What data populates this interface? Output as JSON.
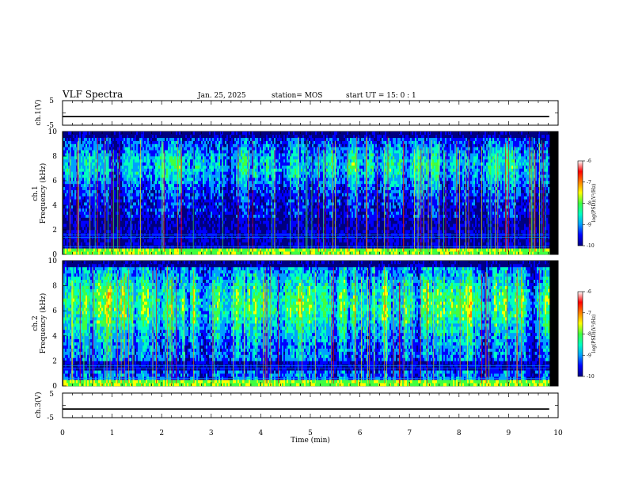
{
  "header": {
    "title": "VLF Spectra",
    "date": "Jan. 25, 2025",
    "station": "station= MOS",
    "start": "start  UT =   15: 0  : 1"
  },
  "chart_data": [
    {
      "type": "line",
      "ylabel": "ch.1(V)",
      "ylim": [
        -5,
        5
      ],
      "yticks": [
        "5",
        "-5"
      ],
      "series": [
        {
          "x": [
            0,
            9.82
          ],
          "values": [
            -1.5,
            -1.5
          ]
        }
      ]
    },
    {
      "type": "heatmap",
      "ylabel_line1": "ch.1",
      "ylabel_line2": "Frequency (kHz)",
      "ylim": [
        0,
        10
      ],
      "yticks": [
        "0",
        "2",
        "4",
        "6",
        "8",
        "10"
      ],
      "xlim": [
        0,
        10
      ],
      "colorbar": {
        "label": "log(PSD)(V²/Hz)",
        "ticks": [
          "-6",
          "-7",
          "-8",
          "-9",
          "-10"
        ],
        "range": [
          -10,
          -6
        ]
      }
    },
    {
      "type": "heatmap",
      "ylabel_line1": "ch.2",
      "ylabel_line2": "Frequency (kHz)",
      "ylim": [
        0,
        10
      ],
      "yticks": [
        "0",
        "2",
        "4",
        "6",
        "8",
        "10"
      ],
      "xlim": [
        0,
        10
      ],
      "colorbar": {
        "label": "log(PSD)(V²/Hz)",
        "ticks": [
          "-6",
          "-7",
          "-8",
          "-9",
          "-10"
        ],
        "range": [
          -10,
          -6
        ]
      }
    },
    {
      "type": "line",
      "ylabel": "ch.3(V)",
      "ylim": [
        -5,
        5
      ],
      "yticks": [
        "5",
        "-5"
      ],
      "series": [
        {
          "x": [
            0,
            9.82
          ],
          "values": [
            -1.5,
            -1.5
          ]
        }
      ]
    }
  ],
  "xaxis": {
    "label": "Time (min)",
    "ticks": [
      "0",
      "1",
      "2",
      "3",
      "4",
      "5",
      "6",
      "7",
      "8",
      "9",
      "10"
    ],
    "xlim": [
      0,
      10
    ]
  },
  "colors": {
    "colormap": [
      "#000080",
      "#0000ff",
      "#00a0ff",
      "#00ffc0",
      "#40ff40",
      "#ffff00",
      "#ff8000",
      "#ff0000",
      "#ffffff"
    ]
  }
}
